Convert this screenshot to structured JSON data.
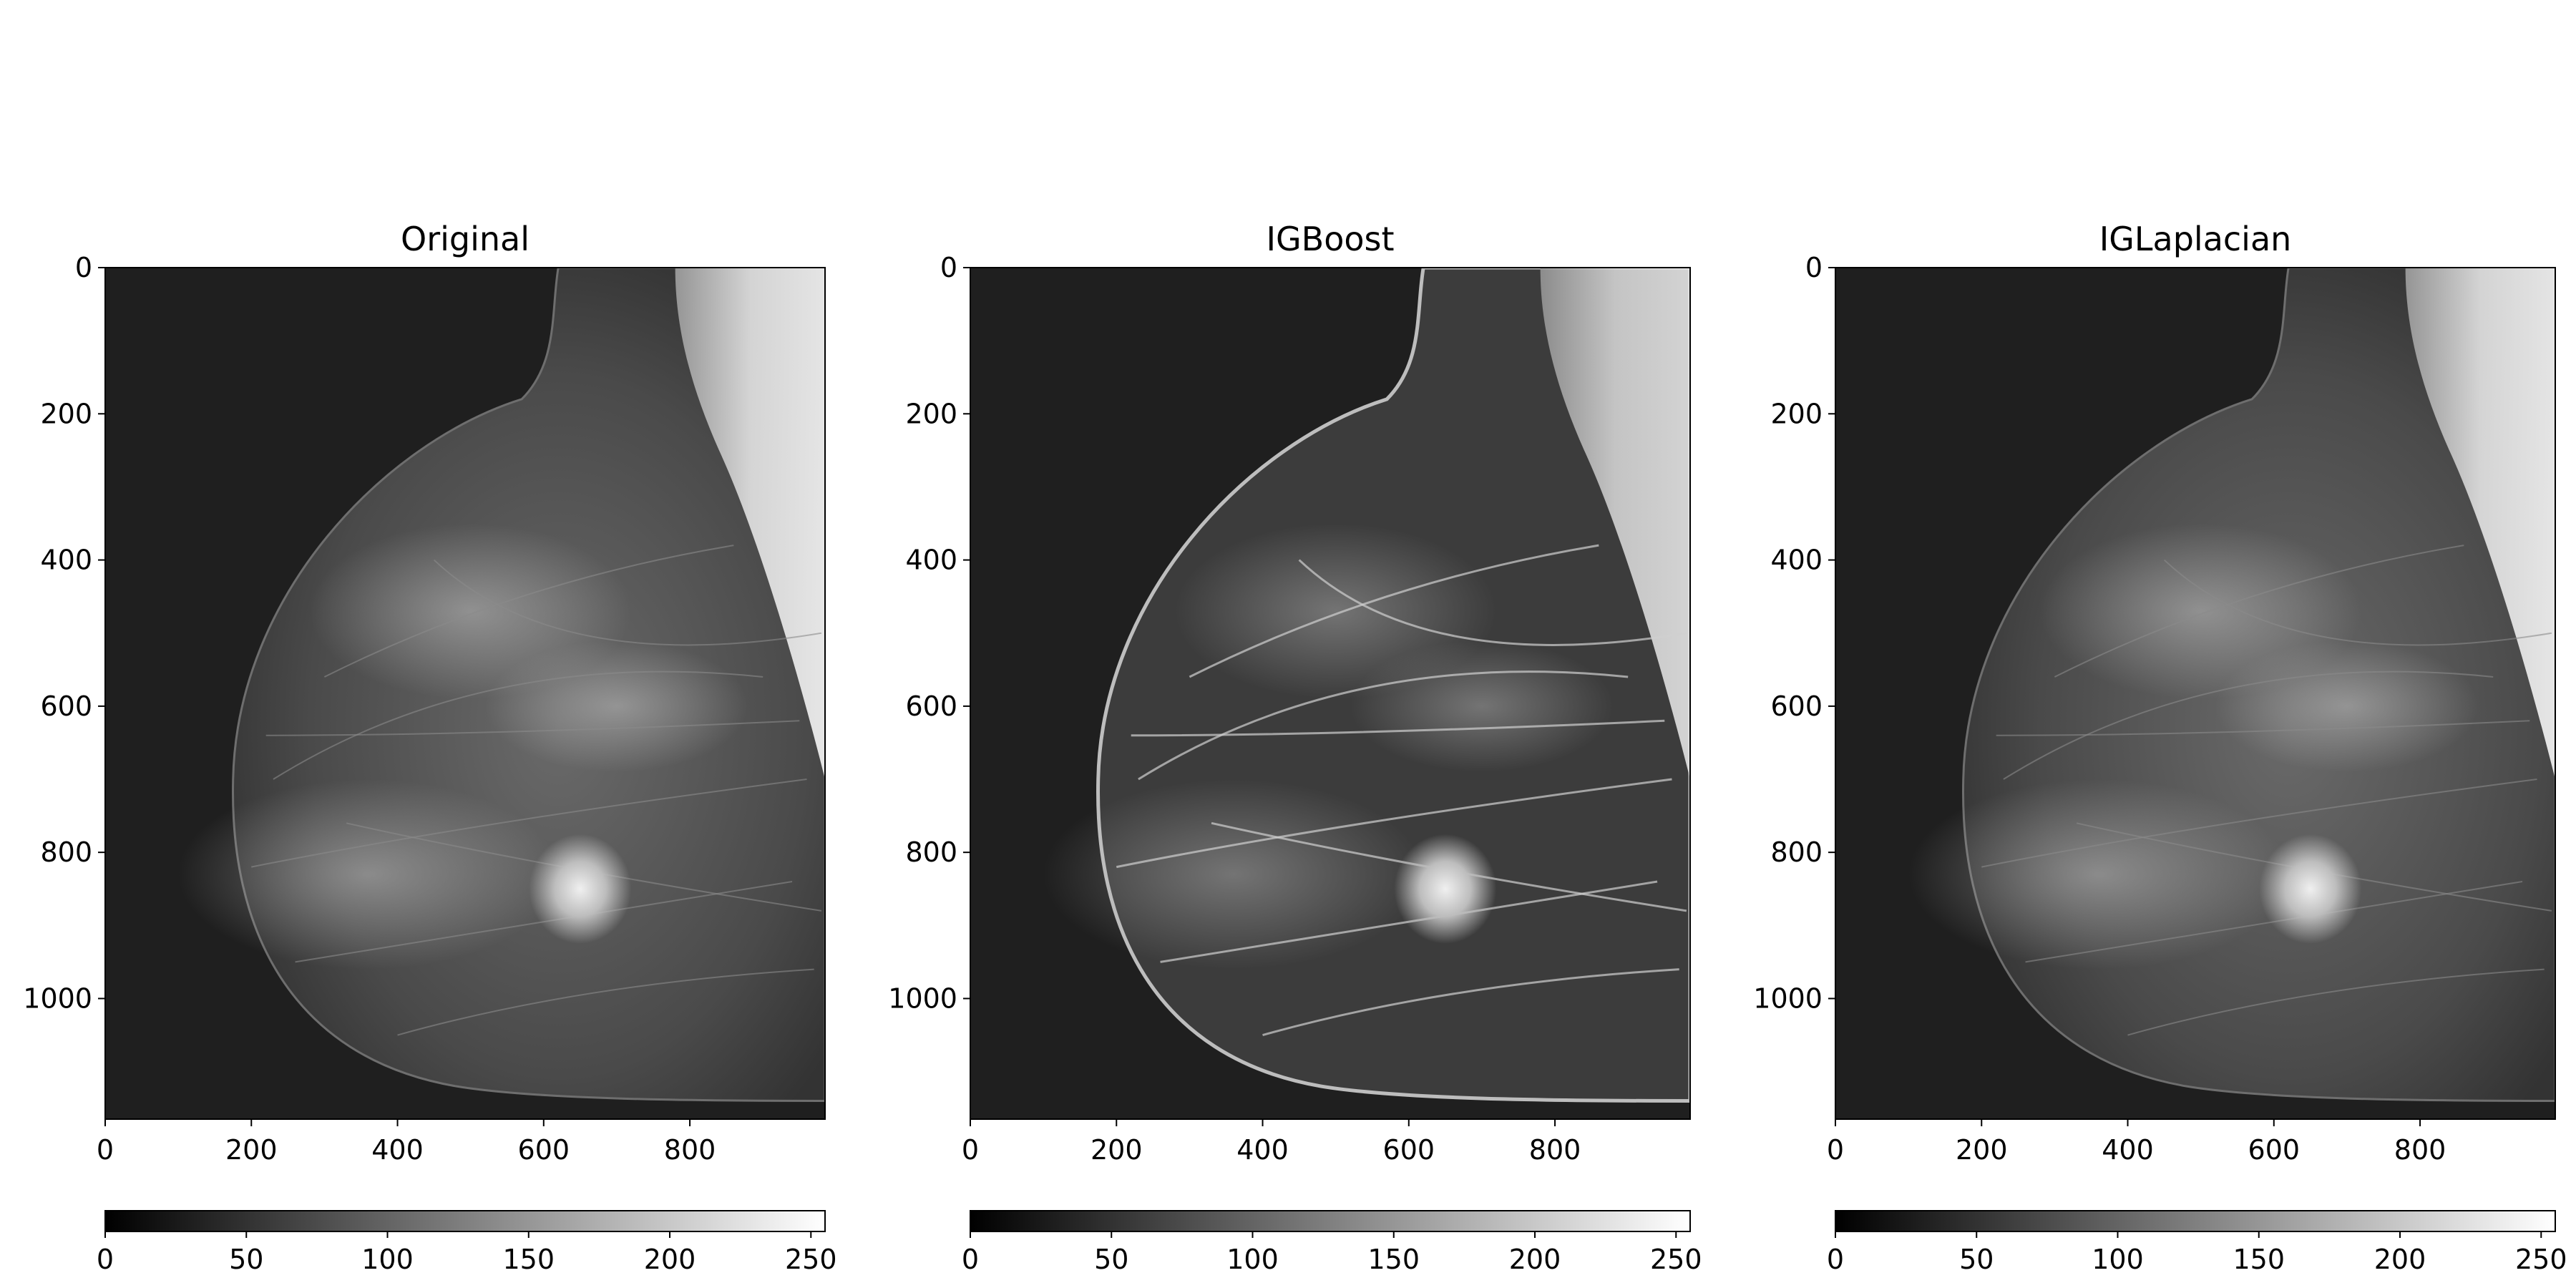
{
  "panels": [
    {
      "title": "Original",
      "xticks": [
        "0",
        "200",
        "400",
        "600",
        "800"
      ],
      "yticks": [
        "0",
        "200",
        "400",
        "600",
        "800",
        "1000"
      ],
      "cbar_ticks": [
        "0",
        "50",
        "100",
        "150",
        "200",
        "250"
      ],
      "image_desc": "grayscale mammogram, original"
    },
    {
      "title": "IGBoost",
      "xticks": [
        "0",
        "200",
        "400",
        "600",
        "800"
      ],
      "yticks": [
        "0",
        "200",
        "400",
        "600",
        "800",
        "1000"
      ],
      "cbar_ticks": [
        "0",
        "50",
        "100",
        "150",
        "200",
        "250"
      ],
      "image_desc": "grayscale mammogram, IGBoost enhanced"
    },
    {
      "title": "IGLaplacian",
      "xticks": [
        "0",
        "200",
        "400",
        "600",
        "800"
      ],
      "yticks": [
        "0",
        "200",
        "400",
        "600",
        "800",
        "1000"
      ],
      "cbar_ticks": [
        "0",
        "50",
        "100",
        "150",
        "200",
        "250"
      ],
      "image_desc": "grayscale mammogram, IGLaplacian enhanced"
    }
  ],
  "colors": {
    "background": "#1f1f1f",
    "tissue": "#5a5a5a",
    "skin": "#e8e8e8"
  }
}
